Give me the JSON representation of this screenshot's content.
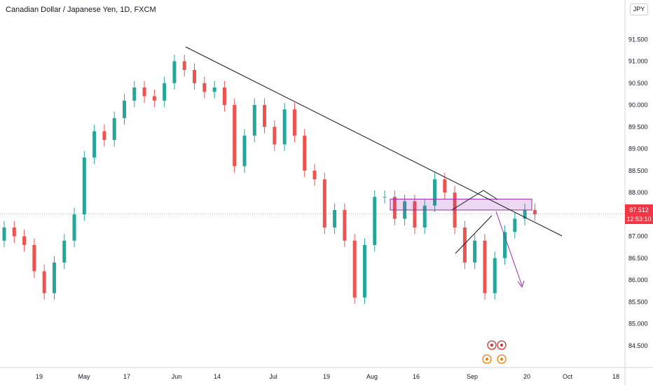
{
  "header": {
    "title": "Canadian Dollar / Japanese Yen, 1D, FXCM",
    "currency": "JPY"
  },
  "price_label": {
    "price": "87.512",
    "countdown": "12:53:10"
  },
  "colors": {
    "up": "#26a69a",
    "down": "#ef5350",
    "trendline": "#131722",
    "zone": "#9c27b0",
    "arrow": "#9c27b0",
    "price_line": "#f23645"
  },
  "chart_data": {
    "type": "candlestick",
    "instrument": "CADJPY",
    "timeframe": "1D",
    "ylim": [
      84.0,
      92.4
    ],
    "y_ticks": [
      "91.500",
      "91.000",
      "90.500",
      "90.000",
      "89.500",
      "89.000",
      "88.500",
      "88.000",
      "87.500",
      "87.000",
      "86.500",
      "86.000",
      "85.500",
      "85.000",
      "84.500"
    ],
    "x_ticks": [
      "19",
      "May",
      "17",
      "Jun",
      "14",
      "Jul",
      "19",
      "Aug",
      "16",
      "Sep",
      "20",
      "Oct",
      "18"
    ],
    "last_price": 87.512,
    "approx_closes": [
      87.2,
      87.0,
      86.8,
      86.2,
      85.7,
      86.4,
      86.9,
      87.5,
      88.8,
      89.4,
      89.2,
      89.7,
      90.1,
      90.4,
      90.2,
      90.1,
      90.5,
      91.0,
      90.8,
      90.5,
      90.3,
      90.4,
      90.0,
      88.6,
      89.3,
      90.0,
      89.5,
      89.1,
      89.9,
      89.3,
      88.5,
      88.3,
      87.2,
      87.6,
      86.9,
      85.6,
      86.8,
      87.9,
      87.9,
      87.4,
      87.8,
      87.2,
      87.7,
      88.3,
      88.0,
      87.2,
      86.4,
      86.9,
      85.7,
      86.5,
      87.1,
      87.4,
      87.6,
      87.5
    ],
    "annotations": {
      "resistance_zone": [
        87.6,
        87.85
      ],
      "descending_trendline": "from ~91.2 (early Jun) to ~87.0 (late Sep)",
      "rising_wedge": "triangle pattern late Aug to early Sep",
      "projected_move": "down to ~85.9"
    }
  }
}
